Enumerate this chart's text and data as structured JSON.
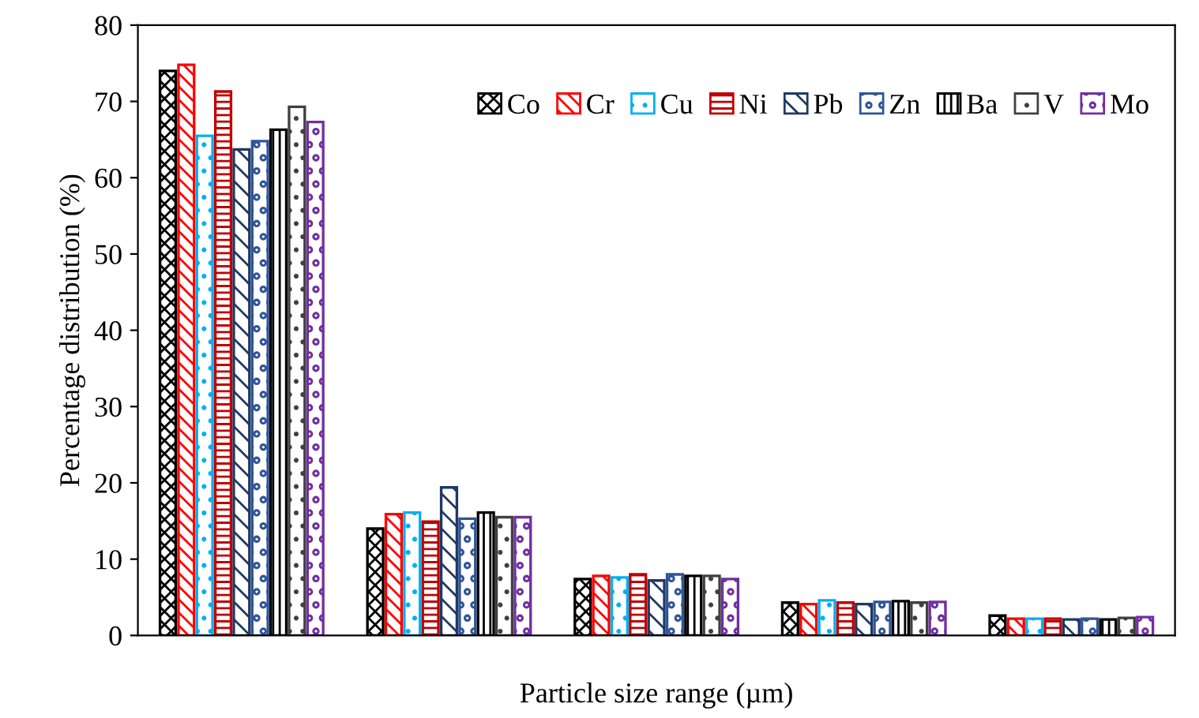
{
  "chart_data": {
    "type": "bar",
    "xlabel": "Particle size range (µm)",
    "ylabel": "Percentage distribution (%)",
    "categories": [
      null,
      null,
      null,
      null,
      null
    ],
    "series": [
      {
        "name": "Co",
        "color": "#000000",
        "values": [
          74.0,
          14.0,
          7.4,
          4.3,
          2.6
        ]
      },
      {
        "name": "Cr",
        "color": "#ff0000",
        "values": [
          74.8,
          15.9,
          7.8,
          4.1,
          2.2
        ]
      },
      {
        "name": "Cu",
        "color": "#00b0f0",
        "values": [
          65.5,
          16.1,
          7.6,
          4.6,
          2.2
        ]
      },
      {
        "name": "Ni",
        "color": "#c00000",
        "values": [
          71.3,
          14.9,
          8.0,
          4.3,
          2.2
        ]
      },
      {
        "name": "Pb",
        "color": "#1f3864",
        "values": [
          63.7,
          19.4,
          7.2,
          4.1,
          2.1
        ]
      },
      {
        "name": "Zn",
        "color": "#2f5597",
        "values": [
          64.8,
          15.3,
          8.0,
          4.4,
          2.2
        ]
      },
      {
        "name": "Ba",
        "color": "#000000",
        "values": [
          66.3,
          16.1,
          7.8,
          4.5,
          2.1
        ]
      },
      {
        "name": "V",
        "color": "#404040",
        "values": [
          69.3,
          15.5,
          7.8,
          4.3,
          2.3
        ]
      },
      {
        "name": "Mo",
        "color": "#7030a0",
        "values": [
          67.3,
          15.5,
          7.4,
          4.4,
          2.4
        ]
      }
    ],
    "ylim": [
      0,
      80
    ],
    "yticks": [
      0,
      10,
      20,
      30,
      40,
      50,
      60,
      70,
      80
    ],
    "grid": false,
    "legend": "top right"
  }
}
